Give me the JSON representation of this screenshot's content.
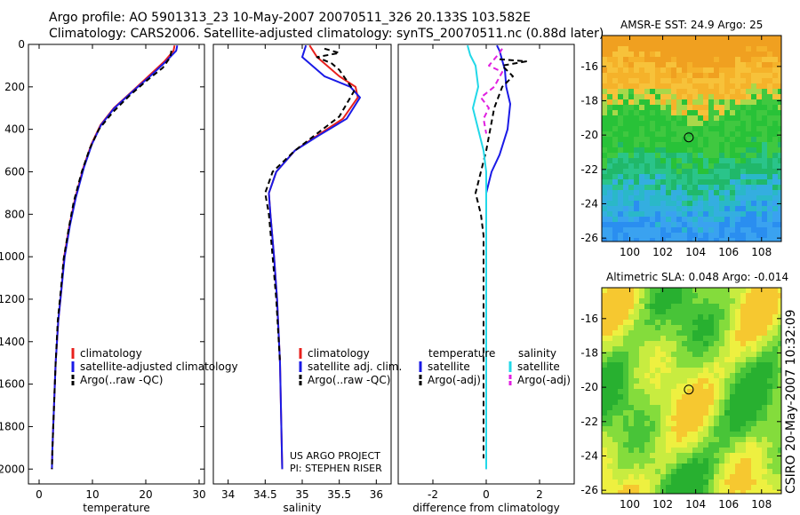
{
  "header": {
    "title_line1": "Argo profile: AO 5901313_23 10-May-2007 20070511_326 20.133S 103.582E",
    "title_line2": "Climatology: CARS2006. Satellite-adjusted climatology: synTS_20070511.nc (0.88d later)"
  },
  "side_label": "CSIRO 20-May-2007 10:32:09",
  "colors": {
    "climatology": "#e8201c",
    "satellite": "#1a1ae6",
    "argo": "#000000",
    "cyan": "#22d8e8",
    "magenta": "#e020e0"
  },
  "chart_data": [
    {
      "id": "temperature",
      "type": "line",
      "xlabel": "temperature",
      "xlim": [
        -2,
        31
      ],
      "ylim": [
        2070,
        0
      ],
      "xticks": [
        0,
        10,
        20,
        30
      ],
      "yticks": [
        0,
        200,
        400,
        600,
        800,
        1000,
        1200,
        1400,
        1600,
        1800,
        2000
      ],
      "legend": [
        "climatology",
        "satellite-adjusted climatology",
        "Argo(..raw -QC)"
      ],
      "series": [
        {
          "name": "climatology",
          "color": "#e8201c",
          "dash": "",
          "x": [
            25.4,
            25.2,
            23.5,
            20.5,
            17.5,
            14,
            11.5,
            9.8,
            8.3,
            6.8,
            5.7,
            4.7,
            4.2,
            3.6,
            3.1,
            2.8,
            2.5,
            2.4
          ],
          "y": [
            5,
            30,
            80,
            150,
            220,
            300,
            380,
            470,
            580,
            720,
            850,
            1000,
            1150,
            1300,
            1500,
            1700,
            1900,
            2000
          ]
        },
        {
          "name": "satellite-adjusted climatology",
          "color": "#1a1ae6",
          "dash": "",
          "x": [
            25.9,
            25.7,
            23.8,
            20.8,
            17.6,
            14.1,
            11.6,
            9.9,
            8.4,
            6.9,
            5.8,
            4.8,
            4.2,
            3.6,
            3.1,
            2.8,
            2.5,
            2.4
          ],
          "y": [
            5,
            30,
            80,
            150,
            220,
            300,
            380,
            470,
            580,
            720,
            850,
            1000,
            1150,
            1300,
            1500,
            1700,
            1900,
            2000
          ]
        },
        {
          "name": "Argo(..raw -QC)",
          "color": "#000000",
          "dash": "6,4",
          "x": [
            24.8,
            24.6,
            23.2,
            20.2,
            17,
            13.8,
            11.2,
            9.5,
            8,
            6.5,
            5.6,
            4.6,
            4.1,
            3.5,
            3.1,
            2.8,
            2.5,
            2.4
          ],
          "y": [
            30,
            60,
            110,
            170,
            240,
            320,
            400,
            490,
            600,
            740,
            860,
            1010,
            1150,
            1300,
            1500,
            1700,
            1900,
            2000
          ]
        }
      ]
    },
    {
      "id": "salinity",
      "type": "line",
      "xlabel": "salinity",
      "xlim": [
        33.8,
        36.2
      ],
      "ylim": [
        2070,
        0
      ],
      "xticks": [
        34,
        34.5,
        35,
        35.5,
        36
      ],
      "yticks": [],
      "legend": [
        "climatology",
        "satellite adj. clim.",
        "Argo(..raw -QC)"
      ],
      "credit": [
        "US ARGO PROJECT",
        "PI: STEPHEN RISER"
      ],
      "series": [
        {
          "name": "climatology",
          "color": "#e8201c",
          "dash": "",
          "x": [
            35.1,
            35.2,
            35.5,
            35.72,
            35.75,
            35.55,
            35.2,
            34.9,
            34.65,
            34.55,
            34.57,
            34.62,
            34.66,
            34.7,
            34.73
          ],
          "y": [
            5,
            60,
            150,
            200,
            250,
            350,
            430,
            500,
            600,
            700,
            800,
            1000,
            1200,
            1500,
            2000
          ]
        },
        {
          "name": "satellite adj. clim.",
          "color": "#1a1ae6",
          "dash": "",
          "x": [
            35.05,
            35.0,
            35.3,
            35.65,
            35.78,
            35.6,
            35.22,
            34.9,
            34.65,
            34.55,
            34.57,
            34.62,
            34.66,
            34.7,
            34.73
          ],
          "y": [
            5,
            60,
            150,
            200,
            250,
            350,
            430,
            500,
            600,
            700,
            800,
            1000,
            1200,
            1500,
            2000
          ]
        },
        {
          "name": "Argo(..raw -QC)",
          "color": "#000000",
          "dash": "6,4",
          "x": [
            35.3,
            35.5,
            35.2,
            35.4,
            35.5,
            35.7,
            35.5,
            35.2,
            34.9,
            34.6,
            34.5,
            34.55,
            34.6,
            34.65,
            34.7
          ],
          "y": [
            20,
            40,
            60,
            90,
            120,
            220,
            340,
            420,
            500,
            600,
            700,
            800,
            1000,
            1200,
            1500
          ]
        }
      ]
    },
    {
      "id": "difference",
      "type": "line",
      "xlabel": "difference from climatology",
      "xlim": [
        -3.3,
        3.3
      ],
      "ylim": [
        2070,
        0
      ],
      "xticks": [
        -2,
        0,
        2
      ],
      "yticks": [],
      "legend_left": {
        "title": "temperature",
        "items": [
          "satellite",
          "Argo(-adj)"
        ]
      },
      "legend_right": {
        "title": "salinity",
        "items": [
          "satellite",
          "Argo(-adj)"
        ]
      },
      "series": [
        {
          "name": "temperature satellite",
          "color": "#1a1ae6",
          "dash": "",
          "x": [
            0.4,
            0.5,
            0.7,
            0.75,
            0.9,
            0.8,
            0.5,
            0.2,
            0.0,
            0.0,
            0.0,
            0.0
          ],
          "y": [
            5,
            30,
            120,
            200,
            280,
            400,
            520,
            600,
            700,
            900,
            1500,
            2000
          ]
        },
        {
          "name": "temperature Argo(-adj)",
          "color": "#000000",
          "dash": "6,4",
          "x": [
            0.5,
            1.5,
            0.6,
            1.0,
            0.6,
            0.3,
            0.0,
            -0.2,
            -0.4,
            -0.2,
            -0.1,
            -0.1,
            -0.1,
            -0.1
          ],
          "y": [
            70,
            80,
            100,
            150,
            200,
            300,
            500,
            600,
            700,
            800,
            900,
            1200,
            1700,
            1950
          ]
        },
        {
          "name": "salinity satellite",
          "color": "#22d8e8",
          "dash": "",
          "x": [
            -0.7,
            -0.6,
            -0.4,
            -0.3,
            -0.5,
            -0.3,
            -0.1,
            0.0,
            0.0,
            0.0,
            0.0
          ],
          "y": [
            5,
            50,
            100,
            200,
            300,
            400,
            500,
            600,
            800,
            1500,
            2000
          ]
        },
        {
          "name": "salinity Argo(-adj)",
          "color": "#e020e0",
          "dash": "6,4",
          "x": [
            0.6,
            0.5,
            0.1,
            0.6,
            0.3,
            -0.2,
            0.1,
            -0.1,
            0.0
          ],
          "y": [
            20,
            40,
            100,
            130,
            200,
            250,
            300,
            350,
            420
          ]
        }
      ]
    },
    {
      "id": "sst_map",
      "type": "heatmap",
      "title": "AMSR-E SST: 24.9 Argo: 25",
      "xlim": [
        98.3,
        109.2
      ],
      "ylim": [
        -26.2,
        -14.2
      ],
      "xticks": [
        100,
        102,
        104,
        106,
        108
      ],
      "yticks": [
        -16,
        -18,
        -20,
        -22,
        -24,
        -26
      ],
      "marker": [
        103.582,
        -20.133
      ]
    },
    {
      "id": "sla_map",
      "type": "heatmap",
      "title": "Altimetric SLA: 0.048 Argo: -0.014",
      "xlim": [
        98.3,
        109.2
      ],
      "ylim": [
        -26.2,
        -14.2
      ],
      "xticks": [
        100,
        102,
        104,
        106,
        108
      ],
      "yticks": [
        -16,
        -18,
        -20,
        -22,
        -24,
        -26
      ],
      "marker": [
        103.582,
        -20.133
      ]
    }
  ]
}
